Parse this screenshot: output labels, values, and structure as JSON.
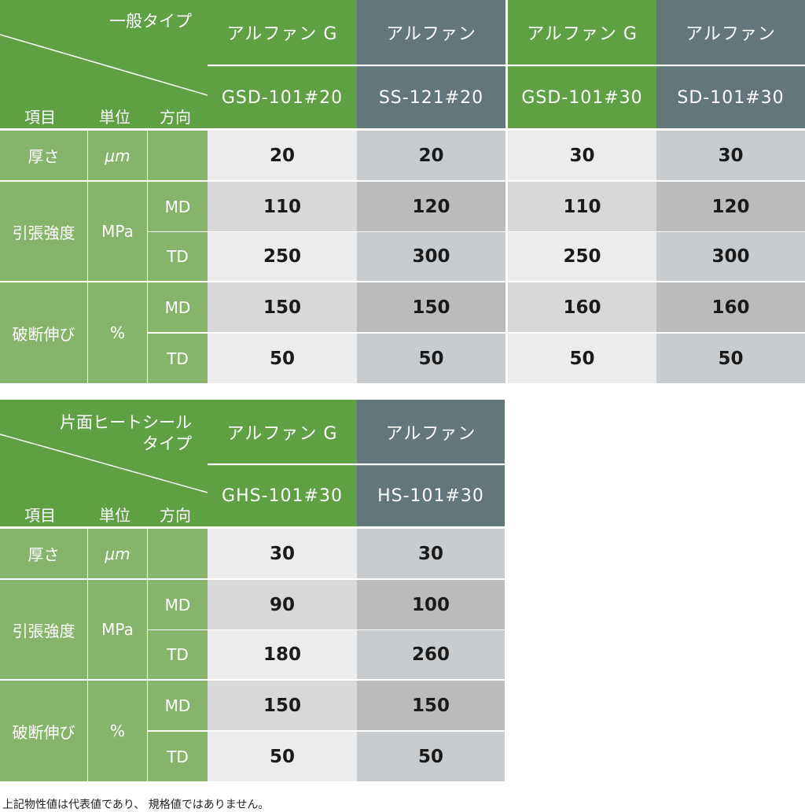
{
  "table1": {
    "corner_title": "一般タイプ",
    "corner_labels": [
      "項目",
      "単位",
      "方向"
    ],
    "product_names": [
      "アルファン G",
      "アルファン",
      "アルファン G",
      "アルファン"
    ],
    "product_codes": [
      "GSD-101#20",
      "SS-121#20",
      "GSD-101#30",
      "SD-101#30"
    ],
    "rows": {
      "thickness": {
        "label": "厚さ",
        "unit": "μm",
        "values": [
          "20",
          "20",
          "30",
          "30"
        ]
      },
      "tensile": {
        "label": "引張強度",
        "unit": "MPa",
        "md": {
          "dir": "MD",
          "values": [
            "110",
            "120",
            "110",
            "120"
          ]
        },
        "td": {
          "dir": "TD",
          "values": [
            "250",
            "300",
            "250",
            "300"
          ]
        }
      },
      "elongation": {
        "label": "破断伸び",
        "unit": "%",
        "md": {
          "dir": "MD",
          "values": [
            "150",
            "150",
            "160",
            "160"
          ]
        },
        "td": {
          "dir": "TD",
          "values": [
            "50",
            "50",
            "50",
            "50"
          ]
        }
      }
    }
  },
  "table2": {
    "corner_title_line1": "片面ヒートシール",
    "corner_title_line2": "タイプ",
    "corner_labels": [
      "項目",
      "単位",
      "方向"
    ],
    "product_names": [
      "アルファン G",
      "アルファン"
    ],
    "product_codes": [
      "GHS-101#30",
      "HS-101#30"
    ],
    "rows": {
      "thickness": {
        "label": "厚さ",
        "unit": "μm",
        "values": [
          "30",
          "30"
        ]
      },
      "tensile": {
        "label": "引張強度",
        "unit": "MPa",
        "md": {
          "dir": "MD",
          "values": [
            "90",
            "100"
          ]
        },
        "td": {
          "dir": "TD",
          "values": [
            "180",
            "260"
          ]
        }
      },
      "elongation": {
        "label": "破断伸び",
        "unit": "%",
        "md": {
          "dir": "MD",
          "values": [
            "150",
            "150"
          ]
        },
        "td": {
          "dir": "TD",
          "values": [
            "50",
            "50"
          ]
        }
      }
    }
  },
  "footnote": "上記物性値は代表値であり、 規格値ではありません。"
}
